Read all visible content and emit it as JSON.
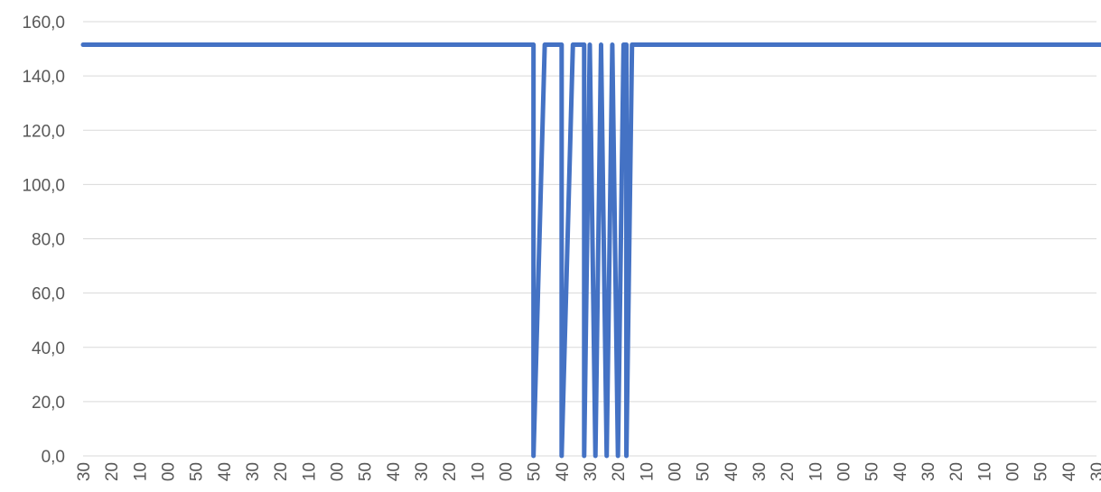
{
  "chart_data": {
    "type": "line",
    "title": "",
    "xlabel": "",
    "ylabel": "",
    "ylim": [
      0,
      160
    ],
    "y_ticks": [
      "0,0",
      "20,0",
      "40,0",
      "60,0",
      "80,0",
      "100,0",
      "120,0",
      "140,0",
      "160,0"
    ],
    "x_tick_labels": [
      "30",
      "20",
      "10",
      "00",
      "50",
      "40",
      "30",
      "20",
      "10",
      "00",
      "50",
      "40",
      "30",
      "20",
      "10",
      "00",
      "50",
      "40",
      "30",
      "20",
      "10",
      "00",
      "50",
      "40",
      "30",
      "20",
      "10",
      "00",
      "50",
      "40",
      "30",
      "20",
      "10",
      "00",
      "50",
      "40",
      "30"
    ],
    "grid": true,
    "legend": "none",
    "colors": {
      "line": "#4472C4",
      "grid": "#d9d9d9",
      "text": "#595959"
    },
    "series": [
      {
        "values": [
          [
            0,
            151.5
          ],
          [
            16,
            151.5
          ],
          [
            16,
            0
          ],
          [
            16.4,
            151.5
          ],
          [
            17,
            151.5
          ],
          [
            17,
            0
          ],
          [
            17.4,
            151.5
          ],
          [
            17.8,
            151.5
          ],
          [
            17.8,
            0
          ],
          [
            18,
            151.5
          ],
          [
            18.2,
            0
          ],
          [
            18.4,
            151.5
          ],
          [
            18.6,
            0
          ],
          [
            18.8,
            151.5
          ],
          [
            19,
            0
          ],
          [
            19.2,
            151.5
          ],
          [
            19.3,
            151.5
          ],
          [
            19.3,
            0
          ],
          [
            19.5,
            151.5
          ],
          [
            36.5,
            151.5
          ]
        ]
      }
    ]
  }
}
